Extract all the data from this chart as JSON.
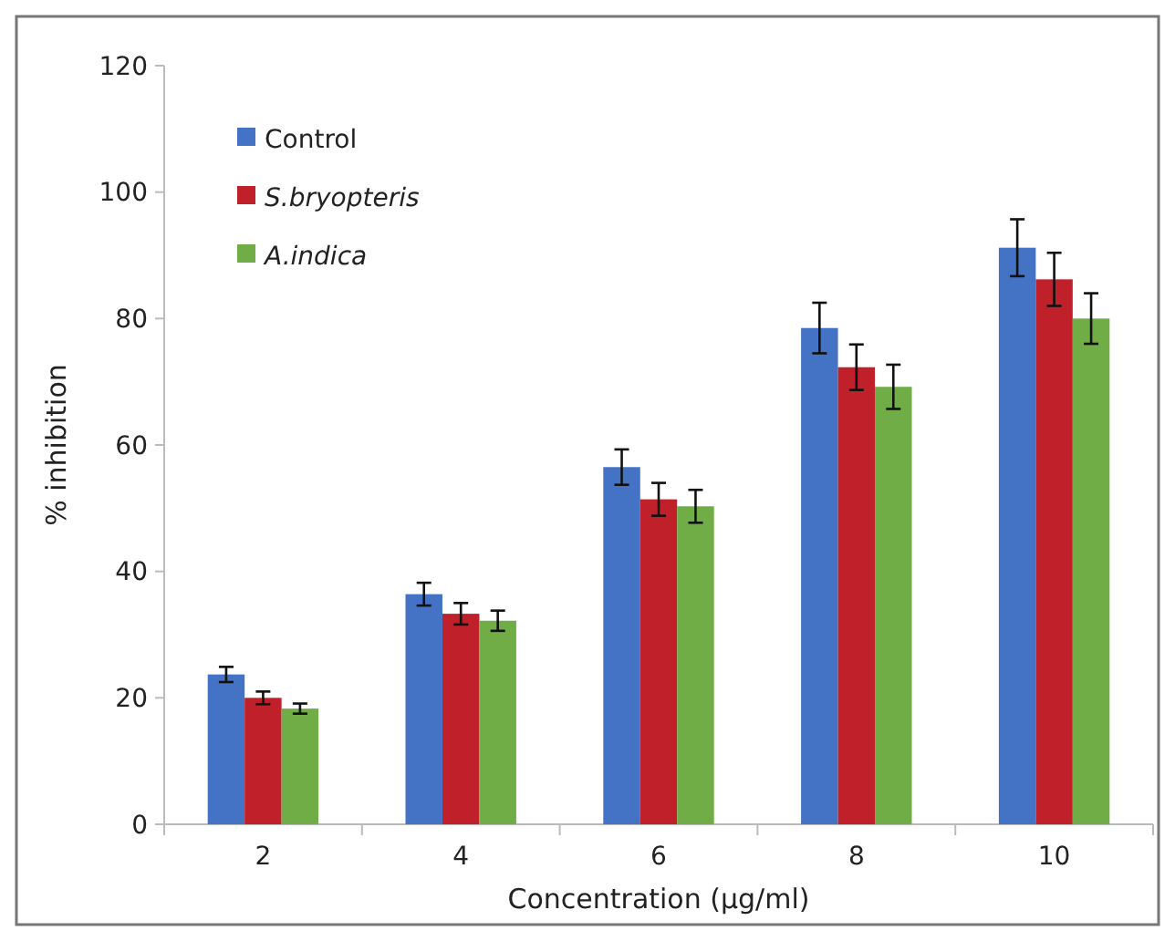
{
  "chart_data": {
    "type": "bar",
    "xlabel": "Concentration (µg/ml)",
    "ylabel": "% inhibition",
    "categories": [
      "2",
      "4",
      "6",
      "8",
      "10"
    ],
    "series": [
      {
        "name": "Control",
        "color": "#4472c4",
        "values": [
          23.7,
          36.4,
          56.5,
          78.5,
          91.2
        ],
        "errors": [
          1.2,
          1.8,
          2.8,
          4,
          4.5
        ]
      },
      {
        "name": "S.bryopteris",
        "color": "#c0202a",
        "values": [
          20,
          33.3,
          51.4,
          72.3,
          86.2
        ],
        "errors": [
          1,
          1.7,
          2.6,
          3.6,
          4.2
        ]
      },
      {
        "name": "A.indica",
        "color": "#70ad47",
        "values": [
          18.3,
          32.2,
          50.3,
          69.2,
          80
        ],
        "errors": [
          0.8,
          1.6,
          2.6,
          3.5,
          4
        ]
      }
    ],
    "ylim": [
      0,
      120
    ],
    "yticks": [
      0,
      20,
      40,
      60,
      80,
      100,
      120
    ],
    "grid": false,
    "legend": "top left"
  }
}
